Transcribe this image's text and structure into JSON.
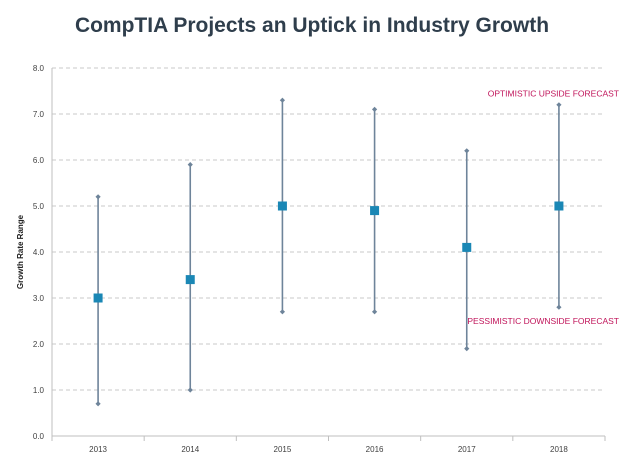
{
  "chart_data": {
    "type": "error-bar",
    "title": "CompTIA Projects an Uptick in Industry Growth",
    "xlabel": "",
    "ylabel": "Growth Rate Range",
    "ylim": [
      0,
      8
    ],
    "yticks": [
      "0.0",
      "1.0",
      "2.0",
      "3.0",
      "4.0",
      "5.0",
      "6.0",
      "7.0",
      "8.0"
    ],
    "grid": "horizontal dashed",
    "categories": [
      "2013",
      "2014",
      "2015",
      "2016",
      "2017",
      "2018"
    ],
    "series": [
      {
        "name": "",
        "values": [
          3.0,
          3.4,
          5.0,
          4.9,
          4.1,
          5.0
        ]
      }
    ],
    "low": [
      0.7,
      1.0,
      2.7,
      2.7,
      1.9,
      2.8
    ],
    "high": [
      5.2,
      5.9,
      7.3,
      7.1,
      6.2,
      7.2
    ],
    "annotations": [
      {
        "text": "OPTIMISTIC UPSIDE FORECAST",
        "category": "2018",
        "y": 7.45
      },
      {
        "text": "PESSIMISTIC DOWNSIDE FORECAST",
        "category": "2018",
        "y": 2.5
      }
    ],
    "colors": {
      "marker": "#1a87b5",
      "whisker": "#6e849a",
      "annotation": "#c0145a",
      "grid": "#b8b8b8",
      "axis": "#bfbfbf"
    }
  }
}
